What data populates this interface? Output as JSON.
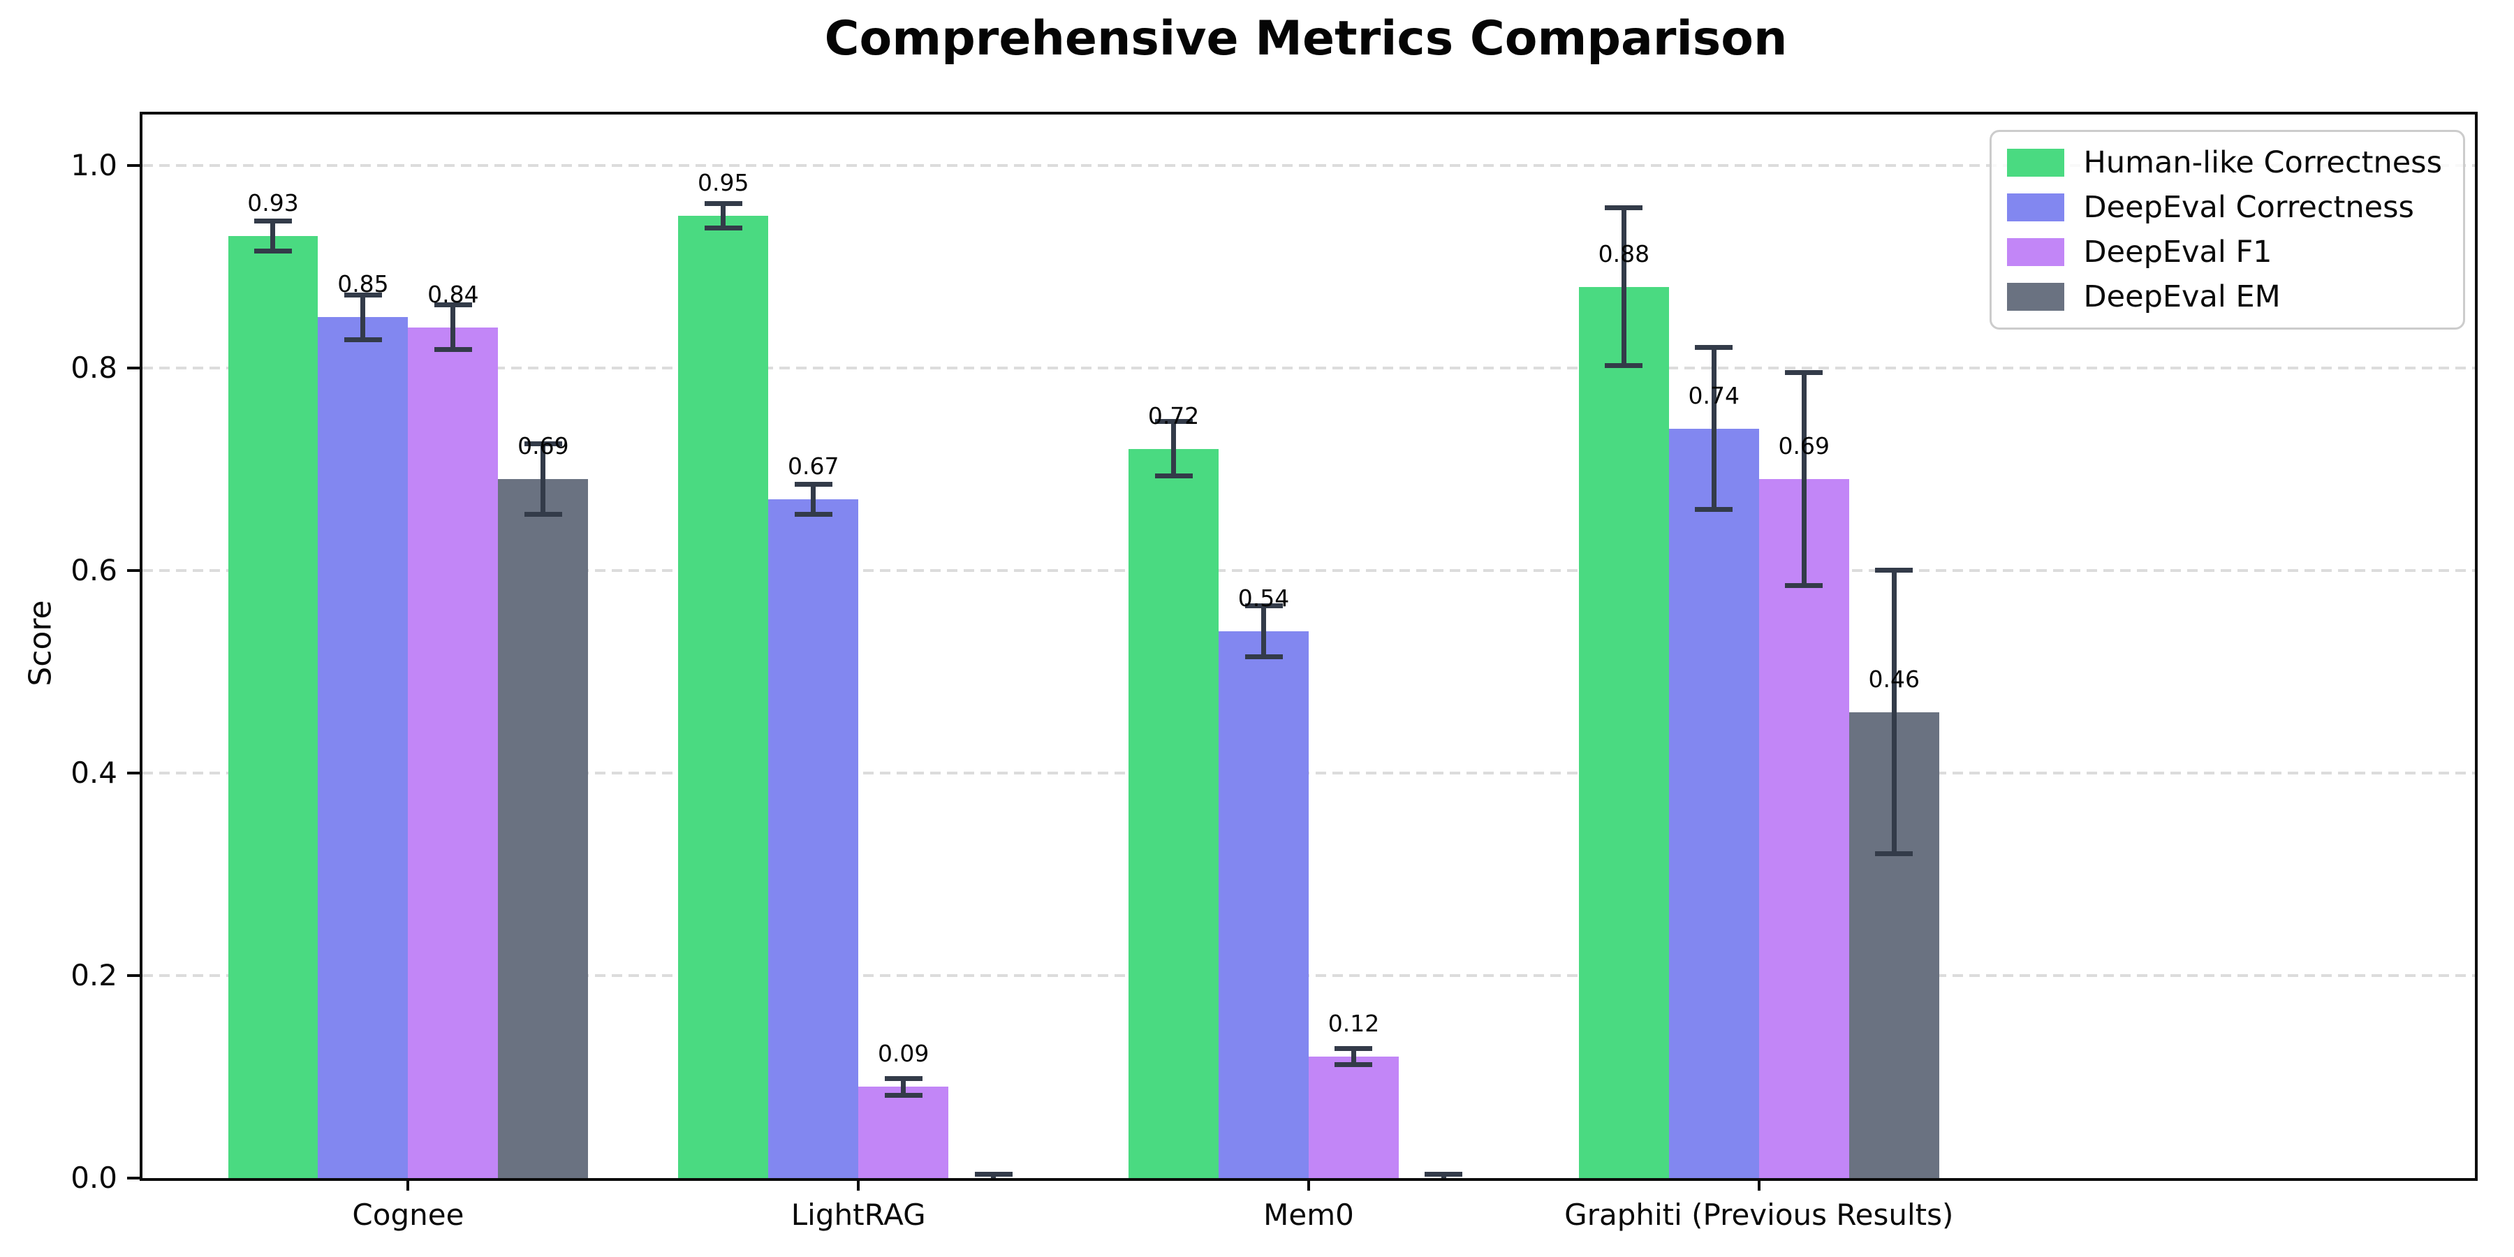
{
  "chart_data": {
    "type": "bar",
    "title": "Comprehensive Metrics Comparison",
    "ylabel": "Score",
    "xlabel": "",
    "categories": [
      "Cognee",
      "LightRAG",
      "Mem0",
      "Graphiti (Previous Results)"
    ],
    "series": [
      {
        "name": "Human-like Correctness",
        "color": "#4ada81",
        "values": [
          0.93,
          0.95,
          0.72,
          0.88
        ],
        "errors": [
          0.015,
          0.012,
          0.027,
          0.078
        ]
      },
      {
        "name": "DeepEval Correctness",
        "color": "#8287f0",
        "values": [
          0.85,
          0.67,
          0.54,
          0.74
        ],
        "errors": [
          0.022,
          0.015,
          0.025,
          0.08
        ]
      },
      {
        "name": "DeepEval F1",
        "color": "#c286f7",
        "values": [
          0.84,
          0.09,
          0.12,
          0.69
        ],
        "errors": [
          0.022,
          0.008,
          0.008,
          0.105
        ]
      },
      {
        "name": "DeepEval EM",
        "color": "#6a7281",
        "values": [
          0.69,
          0.0,
          0.0,
          0.46
        ],
        "errors": [
          0.035,
          0.004,
          0.004,
          0.14
        ]
      }
    ],
    "ylim": [
      0,
      1.05
    ],
    "yticks": [
      0.0,
      0.2,
      0.4,
      0.6,
      0.8,
      1.0
    ],
    "grid": "horizontal-dashed",
    "gridline_color": "#dcdcdc",
    "legend_position": "upper-right",
    "error_bar_color": "#333b49",
    "value_label_decimals": 2
  }
}
